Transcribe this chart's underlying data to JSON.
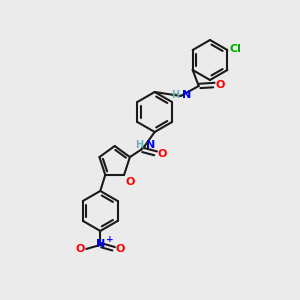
{
  "background_color": "#ebebeb",
  "bond_color": "#1a1a1a",
  "atom_colors": {
    "N": "#0000ff",
    "O": "#ff0000",
    "Cl": "#00aa00",
    "H": "#6db3b3"
  },
  "figsize": [
    3.0,
    3.0
  ],
  "dpi": 100,
  "lw": 1.5,
  "fs": 8.0
}
